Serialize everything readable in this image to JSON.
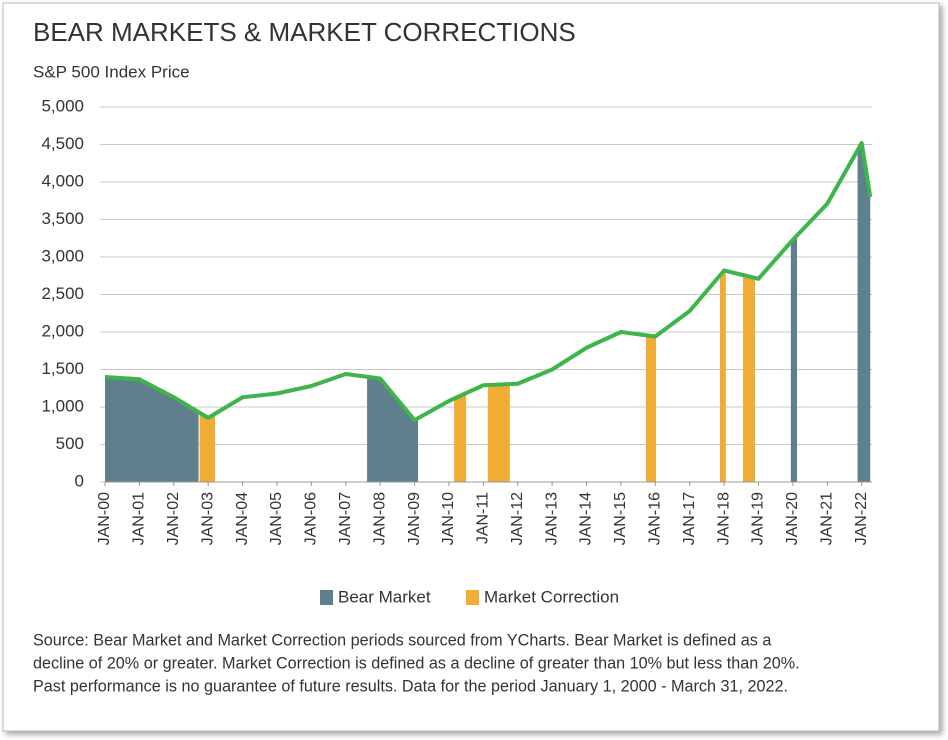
{
  "chart_data": {
    "type": "line",
    "title": "BEAR MARKETS & MARKET CORRECTIONS",
    "subtitle": "S&P 500 Index Price",
    "x": [
      2000,
      2001,
      2002,
      2003,
      2004,
      2005,
      2006,
      2007,
      2008,
      2009,
      2010,
      2011,
      2012,
      2013,
      2014,
      2015,
      2016,
      2017,
      2018,
      2019,
      2020,
      2021,
      2022,
      2022.25
    ],
    "values": [
      1400,
      1370,
      1130,
      855,
      1130,
      1180,
      1280,
      1440,
      1380,
      825,
      1080,
      1290,
      1310,
      1500,
      1790,
      2000,
      1940,
      2280,
      2820,
      2710,
      3230,
      3710,
      4520,
      3800
    ],
    "color": "#3db54a",
    "highlight_series": [
      {
        "name": "Bear Market",
        "color": "#5f7e8e",
        "ranges": [
          [
            2000,
            2002.72
          ],
          [
            2007.62,
            2009.1
          ],
          [
            2019.94,
            2020.12
          ],
          [
            2021.88,
            2022.25
          ]
        ]
      },
      {
        "name": "Market Correction",
        "color": "#f0ac34",
        "ranges": [
          [
            2002.75,
            2003.2
          ],
          [
            2010.15,
            2010.5
          ],
          [
            2011.13,
            2011.77
          ],
          [
            2015.73,
            2016.02
          ],
          [
            2017.88,
            2018.05
          ],
          [
            2018.55,
            2018.9
          ]
        ]
      }
    ],
    "xlim": [
      2000,
      2022.3
    ],
    "xticks": [
      {
        "value": 2000,
        "label": "JAN-00"
      },
      {
        "value": 2001,
        "label": "JAN-01"
      },
      {
        "value": 2002,
        "label": "JAN-02"
      },
      {
        "value": 2003,
        "label": "JAN-03"
      },
      {
        "value": 2004,
        "label": "JAN-04"
      },
      {
        "value": 2005,
        "label": "JAN-05"
      },
      {
        "value": 2006,
        "label": "JAN-06"
      },
      {
        "value": 2007,
        "label": "JAN-07"
      },
      {
        "value": 2008,
        "label": "JAN-08"
      },
      {
        "value": 2009,
        "label": "JAN-09"
      },
      {
        "value": 2010,
        "label": "JAN-10"
      },
      {
        "value": 2011,
        "label": "JAN-11"
      },
      {
        "value": 2012,
        "label": "JAN-12"
      },
      {
        "value": 2013,
        "label": "JAN-13"
      },
      {
        "value": 2014,
        "label": "JAN-14"
      },
      {
        "value": 2015,
        "label": "JAN-15"
      },
      {
        "value": 2016,
        "label": "JAN-16"
      },
      {
        "value": 2017,
        "label": "JAN-17"
      },
      {
        "value": 2018,
        "label": "JAN-18"
      },
      {
        "value": 2019,
        "label": "JAN-19"
      },
      {
        "value": 2020,
        "label": "JAN-20"
      },
      {
        "value": 2021,
        "label": "JAN-21"
      },
      {
        "value": 2022,
        "label": "JAN-22"
      }
    ],
    "ylim": [
      0,
      5000
    ],
    "yticks": [
      0,
      500,
      {
        "value": 1000,
        "label": "1,000"
      },
      {
        "value": 1500,
        "label": "1,500"
      },
      {
        "value": 2000,
        "label": "2,000"
      },
      {
        "value": 2500,
        "label": "2,500"
      },
      {
        "value": 3000,
        "label": "3,000"
      },
      {
        "value": 3500,
        "label": "3,500"
      },
      {
        "value": 4000,
        "label": "4,000"
      },
      {
        "value": 4500,
        "label": "4,500"
      },
      {
        "value": 5000,
        "label": "5,000"
      }
    ],
    "grid": true,
    "legend": "bottom",
    "source": [
      "Source: Bear Market and Market Correction periods sourced from YCharts. Bear Market is defined as a",
      "decline of 20% or greater. Market Correction is defined as a decline of greater than 10% but less than 20%.",
      "Past performance is no guarantee of future results. Data for the period January 1, 2000 - March 31, 2022."
    ]
  }
}
